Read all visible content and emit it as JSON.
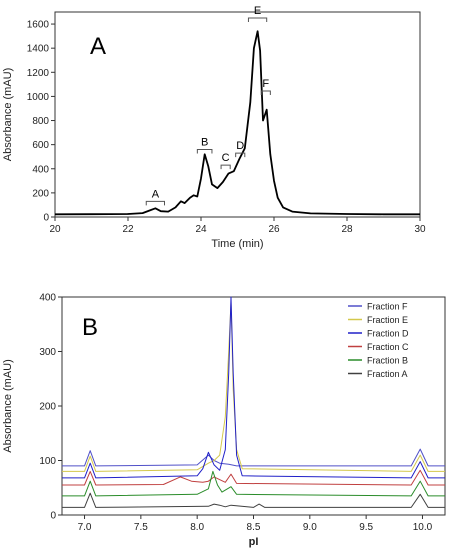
{
  "chart_data": [
    {
      "type": "line",
      "panel_label": "A",
      "xlabel": "Time (min)",
      "ylabel": "Absorbance (mAU)",
      "xlim": [
        20,
        30
      ],
      "ylim": [
        0,
        1700
      ],
      "xticks": [
        20,
        22,
        24,
        26,
        28,
        30
      ],
      "yticks": [
        0,
        200,
        400,
        600,
        800,
        1000,
        1200,
        1400,
        1600
      ],
      "grid": false,
      "series": [
        {
          "color": "#000000",
          "x": [
            20,
            21,
            22,
            22.4,
            22.6,
            22.75,
            22.9,
            23.1,
            23.3,
            23.45,
            23.55,
            23.7,
            23.8,
            23.9,
            24.0,
            24.1,
            24.2,
            24.3,
            24.45,
            24.6,
            24.75,
            24.9,
            25.05,
            25.2,
            25.35,
            25.45,
            25.55,
            25.62,
            25.7,
            25.8,
            25.9,
            26.0,
            26.1,
            26.25,
            26.5,
            27,
            28,
            29,
            30
          ],
          "y": [
            22,
            23,
            25,
            32,
            55,
            72,
            48,
            45,
            80,
            130,
            115,
            160,
            180,
            170,
            320,
            520,
            420,
            270,
            240,
            290,
            360,
            380,
            480,
            570,
            950,
            1400,
            1540,
            1380,
            800,
            890,
            520,
            300,
            160,
            80,
            45,
            30,
            25,
            22,
            22
          ]
        }
      ],
      "annotations": [
        {
          "text": "A",
          "x_start": 22.5,
          "x_end": 23.0,
          "y": 130
        },
        {
          "text": "B",
          "x_start": 23.9,
          "x_end": 24.3,
          "y": 560
        },
        {
          "text": "C",
          "x_start": 24.55,
          "x_end": 24.8,
          "y": 430
        },
        {
          "text": "D",
          "x_start": 24.95,
          "x_end": 25.2,
          "y": 530
        },
        {
          "text": "E",
          "x_start": 25.3,
          "x_end": 25.8,
          "y": 1650
        },
        {
          "text": "F",
          "x_start": 25.65,
          "x_end": 25.9,
          "y": 1045
        }
      ]
    },
    {
      "type": "line",
      "panel_label": "B",
      "xlabel": "pI",
      "ylabel": "Absorbance (mAU)",
      "xlim": [
        6.8,
        10.2
      ],
      "ylim": [
        0,
        400
      ],
      "xticks": [
        7.0,
        7.5,
        8.0,
        8.5,
        9.0,
        9.5,
        10.0
      ],
      "yticks": [
        0,
        100,
        200,
        300,
        400
      ],
      "grid": false,
      "legend_position": "top-right",
      "series": [
        {
          "name": "Fraction F",
          "color": "#5050c8",
          "baseline": 90,
          "x": [
            6.8,
            7.0,
            7.05,
            7.1,
            8.0,
            8.1,
            8.15,
            8.2,
            8.28,
            8.35,
            9.9,
            9.98,
            10.05,
            10.2
          ],
          "y": [
            90,
            90,
            118,
            90,
            92,
            110,
            100,
            95,
            93,
            90,
            90,
            121,
            90,
            90
          ]
        },
        {
          "name": "Fraction E",
          "color": "#d4c84c",
          "baseline": 80,
          "x": [
            6.8,
            7.0,
            7.05,
            7.1,
            8.0,
            8.1,
            8.15,
            8.2,
            8.25,
            8.28,
            8.3,
            8.32,
            8.35,
            8.4,
            9.9,
            9.98,
            10.05,
            10.2
          ],
          "y": [
            80,
            80,
            108,
            80,
            83,
            95,
            100,
            110,
            180,
            300,
            390,
            230,
            120,
            85,
            80,
            110,
            80,
            80
          ]
        },
        {
          "name": "Fraction D",
          "color": "#2020c8",
          "baseline": 68,
          "x": [
            6.8,
            7.0,
            7.05,
            7.1,
            8.0,
            8.05,
            8.1,
            8.15,
            8.2,
            8.25,
            8.28,
            8.3,
            8.32,
            8.35,
            8.4,
            9.9,
            9.98,
            10.05,
            10.2
          ],
          "y": [
            68,
            68,
            95,
            68,
            72,
            85,
            115,
            92,
            82,
            120,
            260,
            400,
            260,
            110,
            72,
            68,
            98,
            68,
            68
          ]
        },
        {
          "name": "Fraction C",
          "color": "#c04040",
          "baseline": 55,
          "x": [
            6.8,
            7.0,
            7.05,
            7.1,
            7.7,
            7.85,
            7.95,
            8.05,
            8.1,
            8.15,
            8.25,
            8.3,
            8.35,
            9.9,
            9.98,
            10.05,
            10.2
          ],
          "y": [
            55,
            55,
            80,
            55,
            56,
            70,
            62,
            60,
            62,
            70,
            60,
            75,
            58,
            55,
            82,
            55,
            55
          ]
        },
        {
          "name": "Fraction B",
          "color": "#2a8c2a",
          "baseline": 35,
          "x": [
            6.8,
            7.0,
            7.05,
            7.1,
            8.0,
            8.1,
            8.14,
            8.18,
            8.22,
            8.3,
            8.35,
            9.9,
            9.98,
            10.05,
            10.2
          ],
          "y": [
            35,
            35,
            62,
            35,
            38,
            48,
            80,
            55,
            42,
            52,
            38,
            35,
            62,
            35,
            35
          ]
        },
        {
          "name": "Fraction A",
          "color": "#404040",
          "baseline": 14,
          "x": [
            6.8,
            7.0,
            7.05,
            7.1,
            8.1,
            8.15,
            8.2,
            8.25,
            8.3,
            8.5,
            8.55,
            8.6,
            9.9,
            9.98,
            10.05,
            10.2
          ],
          "y": [
            14,
            14,
            40,
            14,
            16,
            20,
            18,
            15,
            18,
            14,
            20,
            14,
            14,
            38,
            14,
            14
          ]
        }
      ]
    }
  ]
}
